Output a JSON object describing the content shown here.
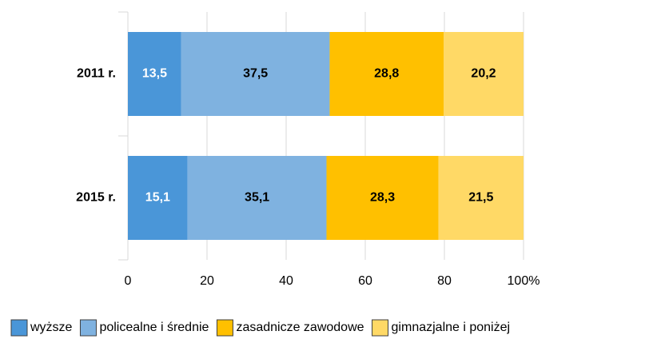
{
  "chart_data": {
    "type": "stacked_barh",
    "categories": [
      "2011 r.",
      "2015 r."
    ],
    "series": [
      {
        "name": "wyższe",
        "color": "#4a96d8",
        "label_color": "#ffffff",
        "values": [
          13.5,
          15.1
        ],
        "value_labels": [
          "13,5",
          "15,1"
        ]
      },
      {
        "name": "policealne i średnie",
        "color": "#7fb2e0",
        "label_color": "#000000",
        "values": [
          37.5,
          35.1
        ],
        "value_labels": [
          "37,5",
          "35,1"
        ]
      },
      {
        "name": "zasadnicze zawodowe",
        "color": "#ffc000",
        "label_color": "#000000",
        "values": [
          28.8,
          28.3
        ],
        "value_labels": [
          "28,8",
          "28,3"
        ]
      },
      {
        "name": "gimnazjalne i poniżej",
        "color": "#ffd966",
        "label_color": "#000000",
        "values": [
          20.2,
          21.5
        ],
        "value_labels": [
          "20,2",
          "21,5"
        ]
      }
    ],
    "xlim": [
      0,
      100
    ],
    "xticks": [
      0,
      20,
      40,
      60,
      80,
      {
        "value": 100,
        "label": "100%"
      }
    ],
    "grid": true,
    "legend": "bottom"
  }
}
